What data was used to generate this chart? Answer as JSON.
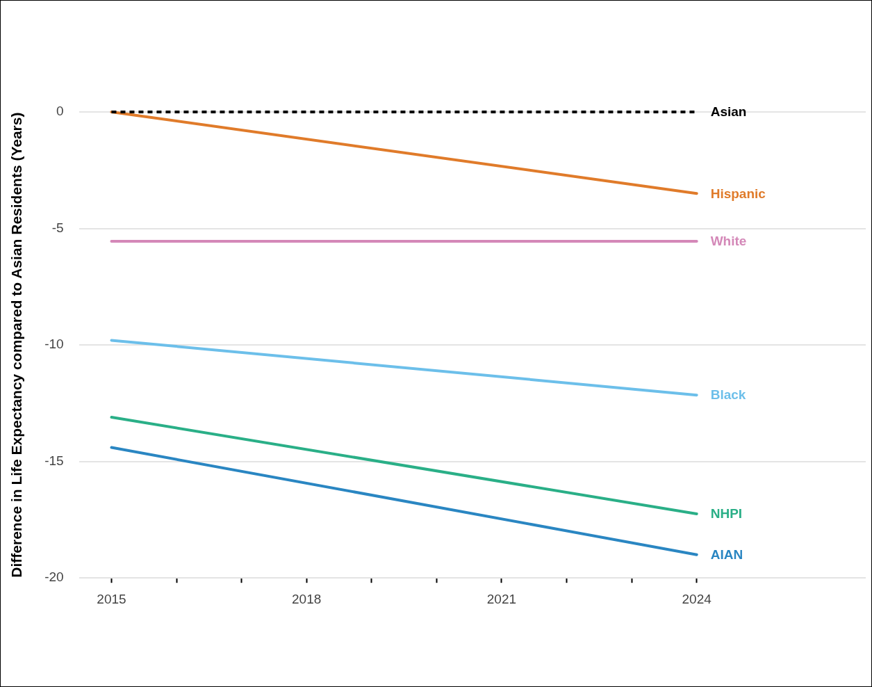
{
  "chart_data": {
    "type": "line",
    "ylabel": "Difference in Life Expectancy compared to Asian Residents (Years)",
    "x": [
      2015,
      2024
    ],
    "series": [
      {
        "name": "Asian",
        "color": "#000000",
        "values": [
          0,
          0
        ],
        "line_style": "dashed"
      },
      {
        "name": "Hispanic",
        "color": "#e07b2a",
        "values": [
          0,
          -3.5
        ]
      },
      {
        "name": "White",
        "color": "#d488b8",
        "values": [
          -5.55,
          -5.55
        ]
      },
      {
        "name": "Black",
        "color": "#6cbfea",
        "values": [
          -9.8,
          -12.15
        ]
      },
      {
        "name": "NHPI",
        "color": "#2aaf87",
        "values": [
          -13.1,
          -17.25
        ]
      },
      {
        "name": "AIAN",
        "color": "#2a86c2",
        "values": [
          -14.4,
          -19
        ]
      }
    ],
    "xlim": [
      2014.5,
      2026.6
    ],
    "xticks": [
      2015,
      {
        "value": 2016,
        "label": null
      },
      {
        "value": 2017,
        "label": null
      },
      2018,
      {
        "value": 2019,
        "label": null
      },
      {
        "value": 2020,
        "label": null
      },
      2021,
      {
        "value": 2022,
        "label": null
      },
      {
        "value": 2023,
        "label": null
      },
      2024
    ],
    "ylim": [
      -20,
      0
    ],
    "yticks": [
      -20,
      -15,
      -10,
      -5,
      0
    ],
    "grid": "y",
    "legend": false,
    "marker": "none"
  }
}
